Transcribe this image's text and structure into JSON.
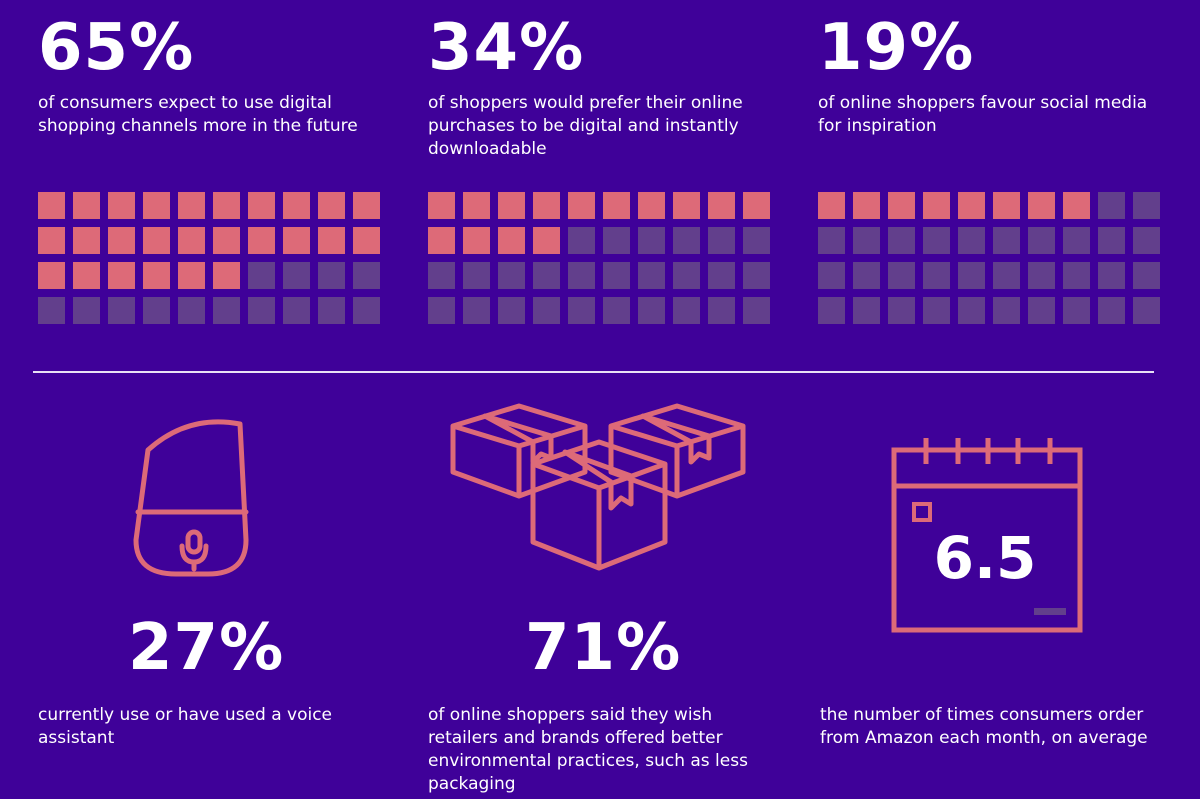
{
  "stats": [
    {
      "value": "65%",
      "text": "of consumers expect to use digital shopping channels more in the future",
      "filled": 26,
      "total": 40
    },
    {
      "value": "34%",
      "text": "of shoppers would prefer their online purchases to be digital and instantly downloadable",
      "filled": 14,
      "total": 40
    },
    {
      "value": "19%",
      "text": "of online shoppers favour social media for inspiration",
      "filled": 8,
      "total": 40
    }
  ],
  "bottom": [
    {
      "value": "27%",
      "text": "currently use or have used a voice assistant",
      "icon": "voice-assistant-icon"
    },
    {
      "value": "71%",
      "text": "of online shoppers said they wish retailers and brands offered better environmental practices, such as less packaging",
      "icon": "boxes-icon"
    },
    {
      "value": "6.5",
      "text": "the number of times consumers order from Amazon each month, on average",
      "icon": "calendar-icon"
    }
  ],
  "colors": {
    "background": "#3f0199",
    "filled": "#dd6a78",
    "empty": "#623f8c",
    "icon_stroke": "#dd6a78",
    "text": "#ffffff"
  }
}
